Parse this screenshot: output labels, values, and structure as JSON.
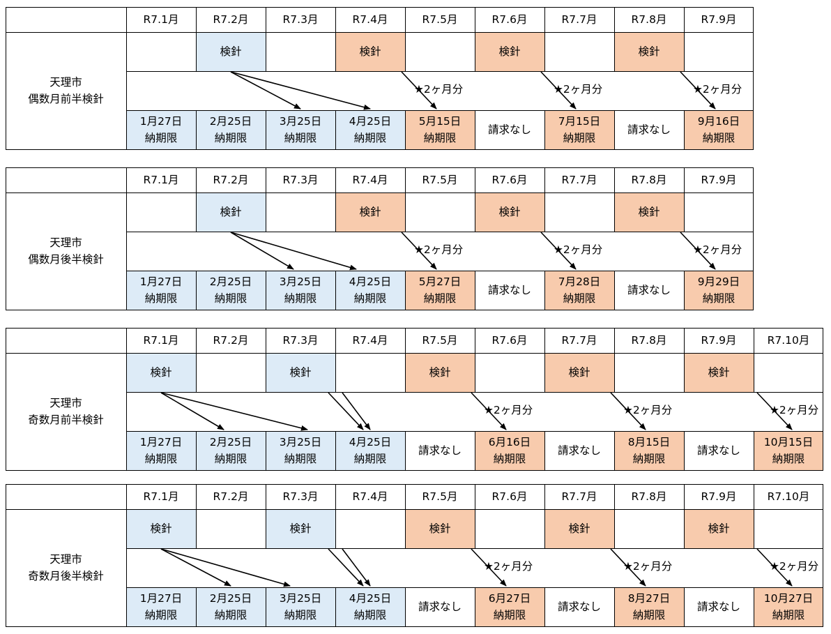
{
  "colors": {
    "prior_period": "#ddebf7",
    "bimonthly_period": "#f8cbad",
    "border": "#000000"
  },
  "reading_label": "検針",
  "two_month_label": "★2ヶ月分",
  "no_bill_label": "請求なし",
  "due_label": "納期限",
  "tables": [
    {
      "title_line1": "天理市",
      "title_line2": "偶数月前半検針",
      "months": [
        "R7.1月",
        "R7.2月",
        "R7.3月",
        "R7.4月",
        "R7.5月",
        "R7.6月",
        "R7.7月",
        "R7.8月",
        "R7.9月"
      ],
      "readings": [
        {
          "col": 1,
          "shade": "blue"
        },
        {
          "col": 3,
          "shade": "orange"
        },
        {
          "col": 5,
          "shade": "orange"
        },
        {
          "col": 7,
          "shade": "orange"
        }
      ],
      "due": [
        {
          "date": "1月27日",
          "shade": "blue"
        },
        {
          "date": "2月25日",
          "shade": "blue"
        },
        {
          "date": "3月25日",
          "shade": "blue"
        },
        {
          "date": "4月25日",
          "shade": "blue"
        },
        {
          "date": "5月15日",
          "shade": "orange"
        },
        {
          "none": true
        },
        {
          "date": "7月15日",
          "shade": "orange"
        },
        {
          "none": true
        },
        {
          "date": "9月16日",
          "shade": "orange"
        }
      ],
      "arrows": [
        {
          "from": 1,
          "to": 2.5
        },
        {
          "from": 1,
          "to": 3.5
        },
        {
          "from": 3.45,
          "to": 4.45,
          "star": true
        },
        {
          "from": 5.45,
          "to": 6.45,
          "star": true
        },
        {
          "from": 7.45,
          "to": 8.45,
          "star": true
        }
      ]
    },
    {
      "title_line1": "天理市",
      "title_line2": "偶数月後半検針",
      "months": [
        "R7.1月",
        "R7.2月",
        "R7.3月",
        "R7.4月",
        "R7.5月",
        "R7.6月",
        "R7.7月",
        "R7.8月",
        "R7.9月"
      ],
      "readings": [
        {
          "col": 1,
          "shade": "blue"
        },
        {
          "col": 3,
          "shade": "orange"
        },
        {
          "col": 5,
          "shade": "orange"
        },
        {
          "col": 7,
          "shade": "orange"
        }
      ],
      "due": [
        {
          "date": "1月27日",
          "shade": "blue"
        },
        {
          "date": "2月25日",
          "shade": "blue"
        },
        {
          "date": "3月25日",
          "shade": "blue"
        },
        {
          "date": "4月25日",
          "shade": "blue"
        },
        {
          "date": "5月27日",
          "shade": "orange"
        },
        {
          "none": true
        },
        {
          "date": "7月28日",
          "shade": "orange"
        },
        {
          "none": true
        },
        {
          "date": "9月29日",
          "shade": "orange"
        }
      ],
      "arrows": [
        {
          "from": 1,
          "to": 2.4
        },
        {
          "from": 1,
          "to": 3.3
        },
        {
          "from": 3.45,
          "to": 4.45,
          "star": true
        },
        {
          "from": 5.45,
          "to": 6.45,
          "star": true
        },
        {
          "from": 7.45,
          "to": 8.45,
          "star": true
        }
      ]
    },
    {
      "title_line1": "天理市",
      "title_line2": "奇数月前半検針",
      "months": [
        "R7.1月",
        "R7.2月",
        "R7.3月",
        "R7.4月",
        "R7.5月",
        "R7.6月",
        "R7.7月",
        "R7.8月",
        "R7.9月",
        "R7.10月"
      ],
      "readings": [
        {
          "col": 0,
          "shade": "blue"
        },
        {
          "col": 2,
          "shade": "blue"
        },
        {
          "col": 4,
          "shade": "orange"
        },
        {
          "col": 6,
          "shade": "orange"
        },
        {
          "col": 8,
          "shade": "orange"
        }
      ],
      "due": [
        {
          "date": "1月27日",
          "shade": "blue"
        },
        {
          "date": "2月25日",
          "shade": "blue"
        },
        {
          "date": "3月25日",
          "shade": "blue"
        },
        {
          "date": "4月25日",
          "shade": "blue"
        },
        {
          "none": true
        },
        {
          "date": "6月16日",
          "shade": "orange"
        },
        {
          "none": true
        },
        {
          "date": "8月15日",
          "shade": "orange"
        },
        {
          "none": true
        },
        {
          "date": "10月15日",
          "shade": "orange"
        }
      ],
      "arrows": [
        {
          "from": 0,
          "to": 1.4
        },
        {
          "from": 0,
          "to": 2.6
        },
        {
          "from": 2.4,
          "to": 3.4
        },
        {
          "from": 2.6,
          "to": 3.5
        },
        {
          "from": 4.45,
          "to": 5.45,
          "star": true
        },
        {
          "from": 6.45,
          "to": 7.45,
          "star": true
        },
        {
          "from": 8.55,
          "to": 9.55,
          "star": true
        }
      ]
    },
    {
      "title_line1": "天理市",
      "title_line2": "奇数月後半検針",
      "months": [
        "R7.1月",
        "R7.2月",
        "R7.3月",
        "R7.4月",
        "R7.5月",
        "R7.6月",
        "R7.7月",
        "R7.8月",
        "R7.9月",
        "R7.10月"
      ],
      "readings": [
        {
          "col": 0,
          "shade": "blue"
        },
        {
          "col": 2,
          "shade": "blue"
        },
        {
          "col": 4,
          "shade": "orange"
        },
        {
          "col": 6,
          "shade": "orange"
        },
        {
          "col": 8,
          "shade": "orange"
        }
      ],
      "due": [
        {
          "date": "1月27日",
          "shade": "blue"
        },
        {
          "date": "2月25日",
          "shade": "blue"
        },
        {
          "date": "3月25日",
          "shade": "blue"
        },
        {
          "date": "4月25日",
          "shade": "blue"
        },
        {
          "none": true
        },
        {
          "date": "6月27日",
          "shade": "orange"
        },
        {
          "none": true
        },
        {
          "date": "8月27日",
          "shade": "orange"
        },
        {
          "none": true
        },
        {
          "date": "10月27日",
          "shade": "orange"
        }
      ],
      "arrows": [
        {
          "from": 0,
          "to": 1.5
        },
        {
          "from": 0,
          "to": 2.35
        },
        {
          "from": 2.4,
          "to": 3.4
        },
        {
          "from": 2.6,
          "to": 3.5
        },
        {
          "from": 4.45,
          "to": 5.45,
          "star": true
        },
        {
          "from": 6.45,
          "to": 7.45,
          "star": true
        },
        {
          "from": 8.55,
          "to": 9.55,
          "star": true
        }
      ]
    }
  ]
}
